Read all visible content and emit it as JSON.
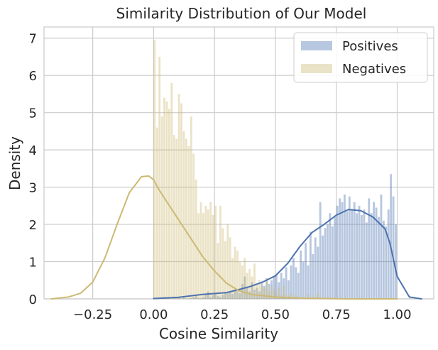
{
  "chart_data": {
    "type": "histogram",
    "title": "Similarity Distribution of Our Model",
    "xlabel": "Cosine Similarity",
    "ylabel": "Density",
    "xlim": [
      -0.45,
      1.15
    ],
    "ylim": [
      0,
      7.3
    ],
    "xticks": [
      -0.25,
      0.0,
      0.25,
      0.5,
      0.75,
      1.0
    ],
    "xtick_labels": [
      "−0.25",
      "0.00",
      "0.25",
      "0.50",
      "0.75",
      "1.00"
    ],
    "yticks": [
      0,
      1,
      2,
      3,
      4,
      5,
      6,
      7
    ],
    "ytick_labels": [
      "0",
      "1",
      "2",
      "3",
      "4",
      "5",
      "6",
      "7"
    ],
    "grid": true,
    "legend_position": "top-right",
    "series": [
      {
        "name": "Positives",
        "color": "#4c72b0",
        "bin_width": 0.01,
        "bins_start": 0.0,
        "densities": [
          0.02,
          0.0,
          0.01,
          0.0,
          0.01,
          0.01,
          0.02,
          0.0,
          0.02,
          0.01,
          0.03,
          0.0,
          0.05,
          0.0,
          0.01,
          0.02,
          0.05,
          0.09,
          0.03,
          0.02,
          0.05,
          0.1,
          0.2,
          0.05,
          0.1,
          0.15,
          0.08,
          0.05,
          0.12,
          0.18,
          0.15,
          0.2,
          0.13,
          0.25,
          0.2,
          0.15,
          0.4,
          0.6,
          0.3,
          0.2,
          0.45,
          0.25,
          0.3,
          0.2,
          0.45,
          0.35,
          0.55,
          0.4,
          0.5,
          0.6,
          0.65,
          0.45,
          0.7,
          0.55,
          0.85,
          0.5,
          0.9,
          1.1,
          0.85,
          0.7,
          1.3,
          1.0,
          1.5,
          0.9,
          1.8,
          1.2,
          1.65,
          1.4,
          2.6,
          1.7,
          1.9,
          2.0,
          2.3,
          1.95,
          2.2,
          2.5,
          2.7,
          2.6,
          2.8,
          2.35,
          2.75,
          2.4,
          2.6,
          2.3,
          2.5,
          2.25,
          2.4,
          2.05,
          2.7,
          2.3,
          2.6,
          2.45,
          2.2,
          2.8,
          2.1,
          1.95,
          2.4,
          3.35,
          2.75,
          2.0
        ],
        "kde_x": [
          0.0,
          0.1,
          0.2,
          0.3,
          0.35,
          0.4,
          0.45,
          0.5,
          0.55,
          0.6,
          0.65,
          0.7,
          0.75,
          0.8,
          0.85,
          0.9,
          0.95,
          0.97,
          1.0,
          1.05,
          1.1
        ],
        "kde_y": [
          0.01,
          0.04,
          0.12,
          0.17,
          0.25,
          0.34,
          0.46,
          0.62,
          0.95,
          1.4,
          1.78,
          2.0,
          2.25,
          2.4,
          2.37,
          2.2,
          1.88,
          1.5,
          0.6,
          0.05,
          0.0
        ]
      },
      {
        "name": "Negatives",
        "color": "#ccb974",
        "bin_width": 0.01,
        "bins_start": 0.0,
        "densities": [
          6.95,
          4.6,
          6.5,
          4.9,
          5.4,
          5.3,
          5.1,
          5.8,
          4.4,
          4.3,
          5.5,
          5.25,
          4.5,
          4.3,
          4.1,
          4.9,
          3.9,
          3.2,
          2.3,
          2.6,
          2.3,
          2.5,
          2.4,
          2.6,
          2.25,
          2.5,
          1.5,
          2.5,
          1.9,
          1.55,
          2.0,
          1.65,
          1.1,
          1.4,
          1.3,
          1.0,
          0.9,
          1.1,
          0.7,
          0.8,
          0.6,
          0.95,
          0.4,
          0.5,
          0.35,
          0.3,
          0.55,
          0.2,
          0.35,
          0.25,
          0.15,
          0.3,
          0.1,
          0.35,
          0.12,
          0.08,
          0.15,
          0.05,
          0.1,
          0.06,
          0.05,
          0.03,
          0.04,
          0.12,
          0.05,
          0.02,
          0.05,
          0.15,
          0.02,
          0.01,
          0.02,
          0.05,
          0.02,
          0.01,
          0.0,
          0.01,
          0.02,
          0.0,
          0.01,
          0.0
        ],
        "kde_x": [
          -0.42,
          -0.35,
          -0.3,
          -0.25,
          -0.2,
          -0.15,
          -0.1,
          -0.05,
          -0.02,
          0.0,
          0.02,
          0.05,
          0.1,
          0.15,
          0.2,
          0.25,
          0.3,
          0.35,
          0.4,
          0.5,
          0.6,
          0.7,
          0.8,
          0.9,
          1.0
        ],
        "kde_y": [
          0.0,
          0.05,
          0.15,
          0.45,
          1.1,
          2.0,
          2.85,
          3.28,
          3.3,
          3.2,
          2.95,
          2.65,
          2.15,
          1.65,
          1.15,
          0.75,
          0.42,
          0.22,
          0.12,
          0.05,
          0.02,
          0.01,
          0.0,
          0.0,
          0.0
        ]
      }
    ]
  }
}
